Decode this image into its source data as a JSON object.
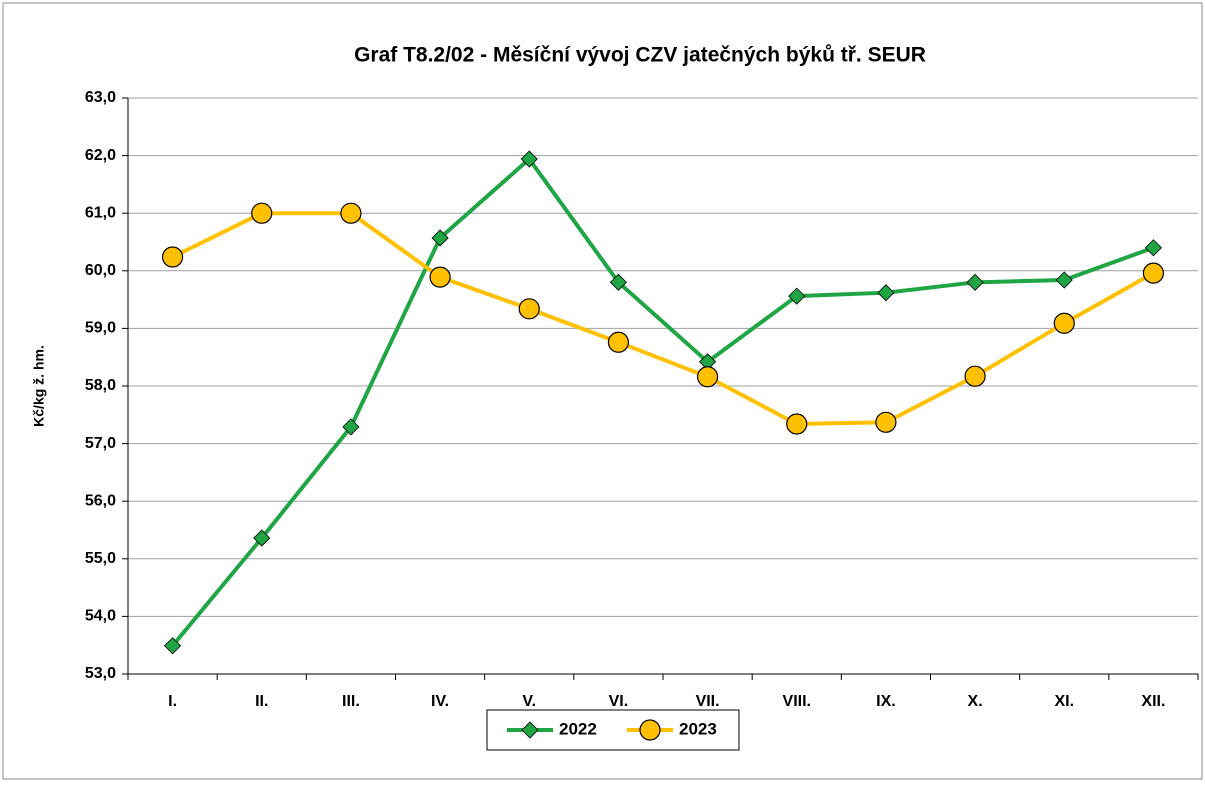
{
  "chart_data": {
    "type": "line",
    "title": "Graf T8.2/02 - Měsíční vývoj CZV jatečných býků tř. SEUR",
    "y_label": "Kč/kg ž. hm.",
    "categories": [
      "I.",
      "II.",
      "III.",
      "IV.",
      "V.",
      "VI.",
      "VII.",
      "VIII.",
      "IX.",
      "X.",
      "XI.",
      "XII."
    ],
    "series": [
      {
        "name": "2022",
        "color": "#1fa544",
        "marker": "diamond",
        "values": [
          53.49,
          55.36,
          57.29,
          60.57,
          61.94,
          59.8,
          58.42,
          59.56,
          59.62,
          59.8,
          59.84,
          60.4
        ]
      },
      {
        "name": "2023",
        "color": "#ffc000",
        "marker": "circle",
        "values": [
          60.24,
          61.0,
          61.0,
          59.89,
          59.34,
          58.76,
          58.16,
          57.34,
          57.37,
          58.17,
          59.09,
          59.96
        ]
      }
    ],
    "ylim": [
      53,
      63
    ],
    "yticks": [
      {
        "value": 53,
        "label": "53,0"
      },
      {
        "value": 54,
        "label": "54,0"
      },
      {
        "value": 55,
        "label": "55,0"
      },
      {
        "value": 56,
        "label": "56,0"
      },
      {
        "value": 57,
        "label": "57,0"
      },
      {
        "value": 58,
        "label": "58,0"
      },
      {
        "value": 59,
        "label": "59,0"
      },
      {
        "value": 60,
        "label": "60,0"
      },
      {
        "value": 61,
        "label": "61,0"
      },
      {
        "value": 62,
        "label": "62,0"
      },
      {
        "value": 63,
        "label": "63,0"
      }
    ],
    "grid": true,
    "legend": "bottom"
  }
}
